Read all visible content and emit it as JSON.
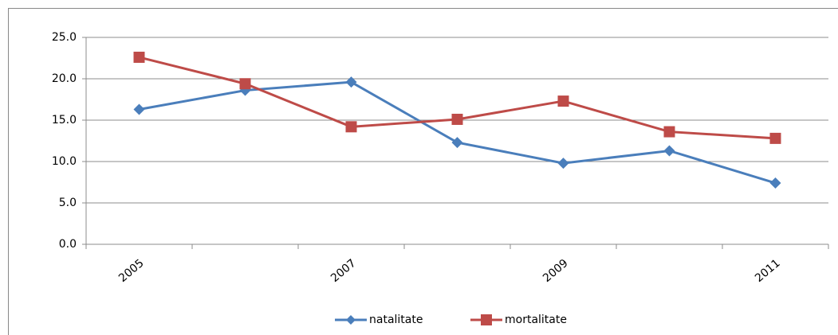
{
  "chart_data": {
    "type": "line",
    "categories": [
      "2005",
      null,
      "2007",
      null,
      "2009",
      null,
      "2011"
    ],
    "series": [
      {
        "name": "natalitate",
        "color": "#4a7ebb",
        "marker": "diamond",
        "values": [
          16.3,
          18.6,
          19.6,
          12.3,
          9.8,
          11.3,
          7.4
        ]
      },
      {
        "name": "mortalitate",
        "color": "#be4b48",
        "marker": "square",
        "values": [
          22.6,
          19.4,
          14.2,
          15.1,
          17.3,
          13.6,
          12.8
        ]
      }
    ],
    "ylim": [
      0,
      25
    ],
    "yticks": [
      {
        "value": 0,
        "label": "0.0"
      },
      {
        "value": 5,
        "label": "5.0"
      },
      {
        "value": 10,
        "label": "10.0"
      },
      {
        "value": 15,
        "label": "15.0"
      },
      {
        "value": 20,
        "label": "20.0"
      },
      {
        "value": 25,
        "label": "25.0"
      }
    ],
    "grid": true,
    "legend": "bottom"
  }
}
